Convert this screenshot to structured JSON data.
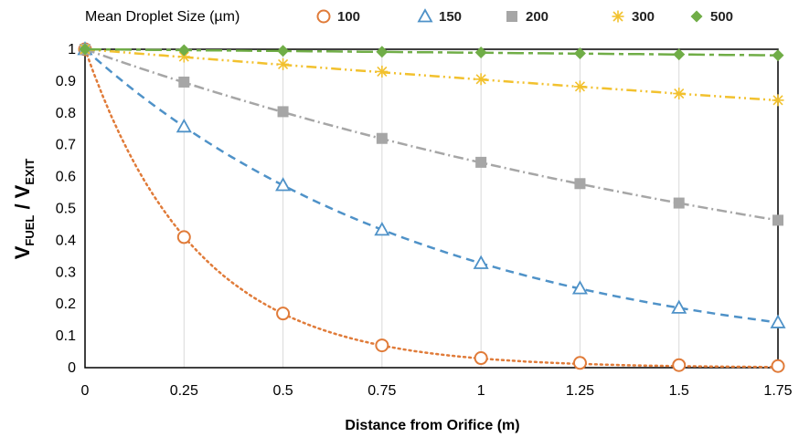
{
  "chart_data": {
    "type": "line",
    "title": "",
    "xlabel": "Distance from Orifice (m)",
    "ylabel": {
      "v1": "V",
      "s1": "FUEL",
      "sep": " / ",
      "v2": "V",
      "s2": "EXIT"
    },
    "legend_title": "Mean Droplet Size (µm)",
    "legend_position": "top",
    "xlim": [
      0,
      1.75
    ],
    "ylim": [
      0,
      1
    ],
    "x": [
      0,
      0.25,
      0.5,
      0.75,
      1,
      1.25,
      1.5,
      1.75
    ],
    "x_tick_labels": [
      "0",
      "0.25",
      "0.5",
      "0.75",
      "1",
      "1.25",
      "1.5",
      "1.75"
    ],
    "y_ticks": [
      0,
      0.1,
      0.2,
      0.3,
      0.4,
      0.5,
      0.6,
      0.7,
      0.8,
      0.9,
      1
    ],
    "y_tick_labels": [
      "0",
      "0.1",
      "0.2",
      "0.3",
      "0.4",
      "0.5",
      "0.6",
      "0.7",
      "0.8",
      "0.9",
      "1"
    ],
    "grid": "vertical",
    "series": [
      {
        "name": "100",
        "marker": "circle-open",
        "line": "dotted",
        "color": "#E07B39",
        "values": [
          1.0,
          0.41,
          0.17,
          0.07,
          0.03,
          0.015,
          0.008,
          0.005
        ],
        "trend_rate": 3.55
      },
      {
        "name": "150",
        "marker": "triangle-open",
        "line": "dashed",
        "color": "#4F92C8",
        "values": [
          1.0,
          0.757,
          0.573,
          0.433,
          0.328,
          0.249,
          0.188,
          0.142
        ],
        "trend_rate": 1.115
      },
      {
        "name": "200",
        "marker": "square",
        "line": "dashdot",
        "color": "#A6A6A6",
        "values": [
          1.0,
          0.897,
          0.804,
          0.72,
          0.645,
          0.578,
          0.517,
          0.463
        ],
        "trend_rate": 0.44
      },
      {
        "name": "300",
        "marker": "star",
        "line": "dashdotdot",
        "color": "#F2C12E",
        "values": [
          1.0,
          0.977,
          0.953,
          0.93,
          0.906,
          0.883,
          0.861,
          0.84
        ],
        "trend_rate": 0.1
      },
      {
        "name": "500",
        "marker": "diamond",
        "line": "longdash",
        "color": "#70AD47",
        "values": [
          1.0,
          0.997,
          0.995,
          0.992,
          0.99,
          0.987,
          0.984,
          0.981
        ],
        "trend_rate": 0.011
      }
    ]
  }
}
